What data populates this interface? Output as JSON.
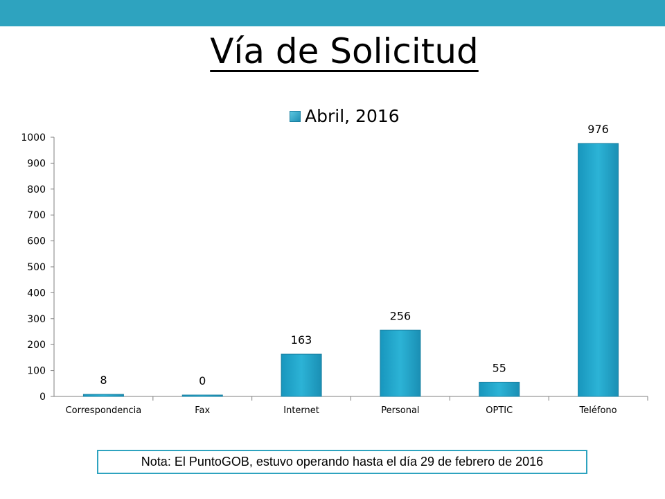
{
  "slide": {
    "title": "Vía de Solicitud",
    "accent_color": "#2ea3bf",
    "note": "Nota: El PuntoGOB, estuvo operando hasta el día 29 de febrero de 2016"
  },
  "chart_data": {
    "type": "bar",
    "title": "",
    "categories": [
      "Correspondencia",
      "Fax",
      "Internet",
      "Personal",
      "OPTIC",
      "Teléfono"
    ],
    "series": [
      {
        "name": "Abril, 2016",
        "values": [
          8,
          0,
          163,
          256,
          55,
          976
        ],
        "color": "#1ea4c9"
      }
    ],
    "y_ticks": [
      0,
      100,
      200,
      300,
      400,
      500,
      600,
      700,
      800,
      900,
      1000
    ],
    "ylim": [
      0,
      1000
    ],
    "xlabel": "",
    "ylabel": "",
    "grid": false,
    "legend": "top-center",
    "data_labels": true
  }
}
